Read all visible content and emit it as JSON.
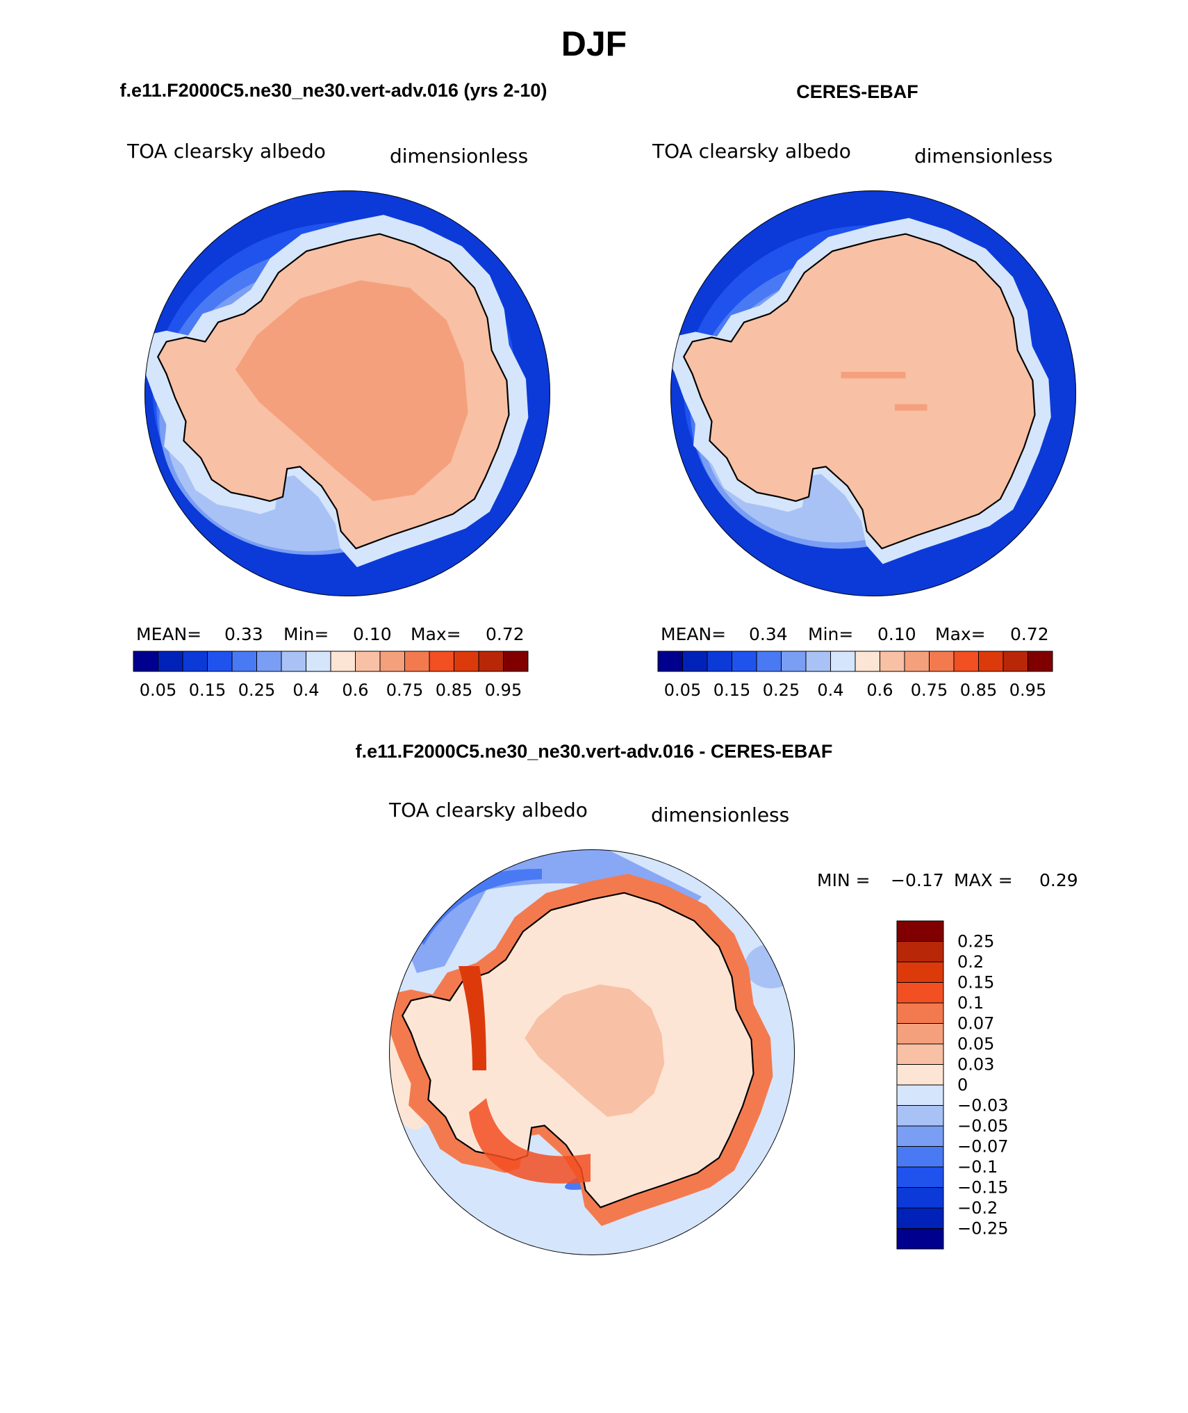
{
  "chart_data": [
    {
      "type": "heatmap",
      "projection": "south-polar-stereographic",
      "season": "DJF",
      "title": "f.e11.F2000C5.ne30_ne30.vert-adv.016 (yrs 2-10)",
      "variable": "TOA clearsky albedo",
      "units": "dimensionless",
      "stats": {
        "mean_label": "MEAN=",
        "mean": "0.33",
        "min_label": "Min=",
        "min": "0.10",
        "max_label": "Max=",
        "max": "0.72"
      },
      "colorbar": {
        "levels": [
          0.05,
          0.1,
          0.15,
          0.2,
          0.25,
          0.3,
          0.4,
          0.5,
          0.6,
          0.7,
          0.75,
          0.8,
          0.85,
          0.9,
          0.95
        ],
        "tick_labels": [
          "0.05",
          "0.15",
          "0.25",
          "0.4",
          "0.6",
          "0.75",
          "0.85",
          "0.95"
        ]
      }
    },
    {
      "type": "heatmap",
      "projection": "south-polar-stereographic",
      "season": "DJF",
      "title": "CERES-EBAF",
      "variable": "TOA clearsky albedo",
      "units": "dimensionless",
      "stats": {
        "mean_label": "MEAN=",
        "mean": "0.34",
        "min_label": "Min=",
        "min": "0.10",
        "max_label": "Max=",
        "max": "0.72"
      },
      "colorbar": {
        "levels": [
          0.05,
          0.1,
          0.15,
          0.2,
          0.25,
          0.3,
          0.4,
          0.5,
          0.6,
          0.7,
          0.75,
          0.8,
          0.85,
          0.9,
          0.95
        ],
        "tick_labels": [
          "0.05",
          "0.15",
          "0.25",
          "0.4",
          "0.6",
          "0.75",
          "0.85",
          "0.95"
        ]
      }
    },
    {
      "type": "heatmap",
      "projection": "south-polar-stereographic",
      "season": "DJF",
      "title": "f.e11.F2000C5.ne30_ne30.vert-adv.016 - CERES-EBAF",
      "variable": "TOA clearsky albedo",
      "units": "dimensionless",
      "stats": {
        "min_label": "MIN =",
        "min": "−0.17",
        "max_label": "MAX =",
        "max": "0.29"
      },
      "colorbar": {
        "levels": [
          0.25,
          0.2,
          0.15,
          0.1,
          0.07,
          0.05,
          0.03,
          0,
          -0.03,
          -0.05,
          -0.07,
          -0.1,
          -0.15,
          -0.2,
          -0.25
        ],
        "tick_labels": [
          "0.25",
          "0.2",
          "0.15",
          "0.1",
          "0.07",
          "0.05",
          "0.03",
          "0",
          "−0.03",
          "−0.05",
          "−0.07",
          "−0.1",
          "−0.15",
          "−0.2",
          "−0.25"
        ]
      }
    }
  ],
  "page": {
    "main_title": "DJF"
  },
  "colors": {
    "seq": [
      "#00008e",
      "#0022b8",
      "#0b3ad8",
      "#2052ee",
      "#4a7af3",
      "#7a9ef4",
      "#a9c2f5",
      "#d5e5fb",
      "#fde5d5",
      "#f8c0a4",
      "#f5a07d",
      "#f37a4f",
      "#f24f22",
      "#dd3a0c",
      "#b82708",
      "#800000"
    ],
    "div": [
      "#800000",
      "#b82708",
      "#dd3a0c",
      "#f24f22",
      "#f37a4f",
      "#f5a07d",
      "#f8c0a4",
      "#fde5d5",
      "#d5e5fb",
      "#a9c2f5",
      "#7a9ef4",
      "#4a7af3",
      "#2052ee",
      "#0b3ad8",
      "#0022b8",
      "#00008e"
    ]
  }
}
